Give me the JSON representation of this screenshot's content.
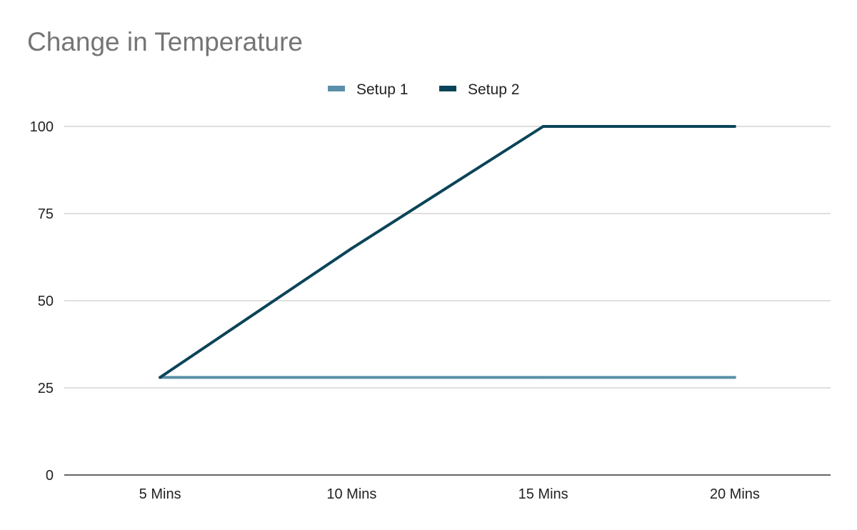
{
  "chart_data": {
    "type": "line",
    "title": "Change in Temperature",
    "categories": [
      "5 Mins",
      "10 Mins",
      "15 Mins",
      "20 Mins"
    ],
    "series": [
      {
        "name": "Setup 1",
        "color": "#5b8fa8",
        "values": [
          28,
          28,
          28,
          28
        ]
      },
      {
        "name": "Setup 2",
        "color": "#0b4458",
        "values": [
          28,
          65,
          100,
          100
        ]
      }
    ],
    "ylim": [
      0,
      100
    ],
    "yticks": [
      0,
      25,
      50,
      75,
      100
    ],
    "xlabel": "",
    "ylabel": "",
    "grid": true,
    "legend_position": "top-center",
    "colors": {
      "title": "#757575",
      "gridline": "#cccccc",
      "baseline": "#333333",
      "tick_label": "#222222"
    }
  }
}
